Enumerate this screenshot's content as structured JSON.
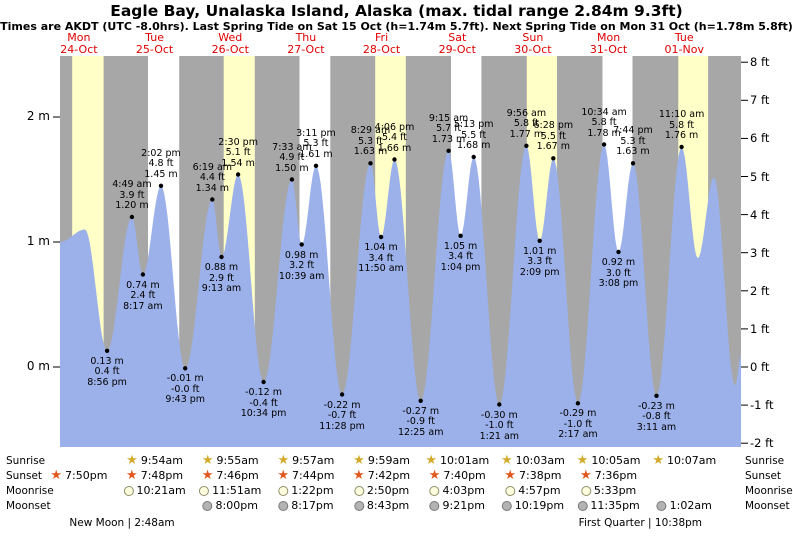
{
  "title": "Eagle Bay, Unalaska Island, Alaska (max. tidal range 2.84m 9.3ft)",
  "subtitle": "Times are AKDT (UTC -8.0hrs). Last Spring Tide on Sat 15 Oct (h=1.74m 5.7ft). Next Spring Tide on Mon 31 Oct (h=1.78m 5.8ft)",
  "days": [
    {
      "dow": "Mon",
      "date": "24-Oct"
    },
    {
      "dow": "Tue",
      "date": "25-Oct"
    },
    {
      "dow": "Wed",
      "date": "26-Oct"
    },
    {
      "dow": "Thu",
      "date": "27-Oct"
    },
    {
      "dow": "Fri",
      "date": "28-Oct"
    },
    {
      "dow": "Sat",
      "date": "29-Oct"
    },
    {
      "dow": "Sun",
      "date": "30-Oct"
    },
    {
      "dow": "Mon",
      "date": "31-Oct"
    },
    {
      "dow": "Tue",
      "date": "01-Nov"
    }
  ],
  "chart_data": {
    "type": "area",
    "title": "Tide height curve for Eagle Bay, Unalaska Island, Alaska",
    "x_categories": [
      "Mon 24-Oct",
      "Tue 25-Oct",
      "Wed 26-Oct",
      "Thu 27-Oct",
      "Fri 28-Oct",
      "Sat 29-Oct",
      "Sun 30-Oct",
      "Mon 31-Oct",
      "Tue 01-Nov"
    ],
    "y_axis_left": {
      "unit": "m",
      "ticks": [
        0,
        1,
        2
      ],
      "labels": [
        "0 m",
        "1 m",
        "2 m"
      ]
    },
    "y_axis_right": {
      "unit": "ft",
      "ticks": [
        -2,
        -1,
        0,
        1,
        2,
        3,
        4,
        5,
        6,
        7,
        8
      ]
    },
    "ylim_m": [
      -0.62,
      2.5
    ],
    "extremes": [
      {
        "kind": "edge",
        "t": 6,
        "m": 1.0,
        "lines": null
      },
      {
        "kind": "high",
        "t": 13.9,
        "m": 1.1,
        "lines": null
      },
      {
        "kind": "low",
        "t": 20.933,
        "m": 0.13,
        "lines": [
          "0.13 m",
          "0.4 ft",
          "8:56 pm"
        ]
      },
      {
        "kind": "high",
        "t": 28.817,
        "m": 1.2,
        "lines": [
          "4:49 am",
          "3.9 ft",
          "1.20 m"
        ]
      },
      {
        "kind": "low",
        "t": 32.283,
        "m": 0.74,
        "lines": [
          "0.74 m",
          "2.4 ft",
          "8:17 am"
        ]
      },
      {
        "kind": "high",
        "t": 38.033,
        "m": 1.45,
        "lines": [
          "2:02 pm",
          "4.8 ft",
          "1.45 m"
        ]
      },
      {
        "kind": "low",
        "t": 45.717,
        "m": -0.01,
        "lines": [
          "-0.01 m",
          "-0.0 ft",
          "9:43 pm"
        ]
      },
      {
        "kind": "high",
        "t": 54.317,
        "m": 1.34,
        "lines": [
          "6:19 am",
          "4.4 ft",
          "1.34 m"
        ]
      },
      {
        "kind": "low",
        "t": 57.217,
        "m": 0.88,
        "lines": [
          "0.88 m",
          "2.9 ft",
          "9:13 am"
        ]
      },
      {
        "kind": "high",
        "t": 62.5,
        "m": 1.54,
        "lines": [
          "2:30 pm",
          "5.1 ft",
          "1.54 m"
        ]
      },
      {
        "kind": "low",
        "t": 70.567,
        "m": -0.12,
        "lines": [
          "-0.12 m",
          "-0.4 ft",
          "10:34 pm"
        ]
      },
      {
        "kind": "high",
        "t": 79.55,
        "m": 1.5,
        "lines": [
          "7:33 am",
          "4.9 ft",
          "1.50 m"
        ]
      },
      {
        "kind": "low",
        "t": 82.65,
        "m": 0.98,
        "lines": [
          "0.98 m",
          "3.2 ft",
          "10:39 am"
        ]
      },
      {
        "kind": "high",
        "t": 87.183,
        "m": 1.61,
        "lines": [
          "3:11 pm",
          "5.3 ft",
          "1.61 m"
        ]
      },
      {
        "kind": "low",
        "t": 95.467,
        "m": -0.22,
        "lines": [
          "-0.22 m",
          "-0.7 ft",
          "11:28 pm"
        ]
      },
      {
        "kind": "high",
        "t": 104.483,
        "m": 1.63,
        "lines": [
          "8:29 am",
          "5.3 ft",
          "1.63 m"
        ]
      },
      {
        "kind": "low",
        "t": 107.833,
        "m": 1.04,
        "lines": [
          "1.04 m",
          "3.4 ft",
          "11:50 am"
        ]
      },
      {
        "kind": "high",
        "t": 112.1,
        "m": 1.66,
        "lines": [
          "4:06 pm",
          "5.4 ft",
          "1.66 m"
        ]
      },
      {
        "kind": "low",
        "t": 120.417,
        "m": -0.27,
        "lines": [
          "-0.27 m",
          "-0.9 ft",
          "12:25 am"
        ]
      },
      {
        "kind": "high",
        "t": 129.25,
        "m": 1.73,
        "lines": [
          "9:15 am",
          "5.7 ft",
          "1.73 m"
        ]
      },
      {
        "kind": "low",
        "t": 133.067,
        "m": 1.05,
        "lines": [
          "1.05 m",
          "3.4 ft",
          "1:04 pm"
        ]
      },
      {
        "kind": "high",
        "t": 137.217,
        "m": 1.68,
        "lines": [
          "5:13 pm",
          "5.5 ft",
          "1.68 m"
        ]
      },
      {
        "kind": "low",
        "t": 145.35,
        "m": -0.3,
        "lines": [
          "-0.30 m",
          "-1.0 ft",
          "1:21 am"
        ]
      },
      {
        "kind": "high",
        "t": 153.933,
        "m": 1.77,
        "lines": [
          "9:56 am",
          "5.8 ft",
          "1.77 m"
        ]
      },
      {
        "kind": "low",
        "t": 158.15,
        "m": 1.01,
        "lines": [
          "1.01 m",
          "3.3 ft",
          "2:09 pm"
        ]
      },
      {
        "kind": "high",
        "t": 162.467,
        "m": 1.67,
        "lines": [
          "6:28 pm",
          "5.5 ft",
          "1.67 m"
        ]
      },
      {
        "kind": "low",
        "t": 170.283,
        "m": -0.29,
        "lines": [
          "-0.29 m",
          "-1.0 ft",
          "2:17 am"
        ]
      },
      {
        "kind": "high",
        "t": 178.567,
        "m": 1.78,
        "lines": [
          "10:34 am",
          "5.8 ft",
          "1.78 m"
        ]
      },
      {
        "kind": "low",
        "t": 183.133,
        "m": 0.92,
        "lines": [
          "0.92 m",
          "3.0 ft",
          "3:08 pm"
        ]
      },
      {
        "kind": "high",
        "t": 187.733,
        "m": 1.63,
        "lines": [
          "7:44 pm",
          "5.3 ft",
          "1.63 m"
        ]
      },
      {
        "kind": "low",
        "t": 195.183,
        "m": -0.23,
        "lines": [
          "-0.23 m",
          "-0.8 ft",
          "3:11 am"
        ]
      },
      {
        "kind": "high",
        "t": 203.167,
        "m": 1.76,
        "lines": [
          "11:10 am",
          "5.8 ft",
          "1.76 m"
        ]
      },
      {
        "kind": "low",
        "t": 208.3,
        "m": 0.87,
        "lines": null
      },
      {
        "kind": "high",
        "t": 213.4,
        "m": 1.52,
        "lines": null
      },
      {
        "kind": "low",
        "t": 220.1,
        "m": -0.15,
        "lines": null
      },
      {
        "kind": "edge",
        "t": 222,
        "m": 0.1,
        "lines": null
      }
    ]
  },
  "astro": {
    "row_labels": {
      "sunrise": "Sunrise",
      "sunset": "Sunset",
      "moonrise": "Moonrise",
      "moonset": "Moonset"
    },
    "sunrise": [
      {
        "day": 1,
        "time": "9:54am"
      },
      {
        "day": 2,
        "time": "9:55am"
      },
      {
        "day": 3,
        "time": "9:57am"
      },
      {
        "day": 4,
        "time": "9:59am"
      },
      {
        "day": 5,
        "time": "10:01am"
      },
      {
        "day": 6,
        "time": "10:03am"
      },
      {
        "day": 7,
        "time": "10:05am"
      },
      {
        "day": 8,
        "time": "10:07am"
      }
    ],
    "sunset": [
      {
        "day": 0,
        "time": "7:50pm"
      },
      {
        "day": 1,
        "time": "7:48pm"
      },
      {
        "day": 2,
        "time": "7:46pm"
      },
      {
        "day": 3,
        "time": "7:44pm"
      },
      {
        "day": 4,
        "time": "7:42pm"
      },
      {
        "day": 5,
        "time": "7:40pm"
      },
      {
        "day": 6,
        "time": "7:38pm"
      },
      {
        "day": 7,
        "time": "7:36pm"
      }
    ],
    "moonrise": [
      {
        "day": 1,
        "time": "10:21am"
      },
      {
        "day": 2,
        "time": "11:51am"
      },
      {
        "day": 3,
        "time": "1:22pm"
      },
      {
        "day": 4,
        "time": "2:50pm"
      },
      {
        "day": 5,
        "time": "4:03pm"
      },
      {
        "day": 6,
        "time": "4:57pm"
      },
      {
        "day": 7,
        "time": "5:33pm"
      }
    ],
    "moonset": [
      {
        "day": 2,
        "time": "8:00pm"
      },
      {
        "day": 3,
        "time": "8:17pm"
      },
      {
        "day": 4,
        "time": "8:43pm"
      },
      {
        "day": 5,
        "time": "9:21pm"
      },
      {
        "day": 6,
        "time": "10:19pm"
      },
      {
        "day": 7,
        "time": "11:35pm"
      },
      {
        "day": 8,
        "time": "1:02am"
      }
    ],
    "phases": [
      {
        "name": "New Moon",
        "time": "2:48am",
        "day": 0.57
      },
      {
        "name": "First Quarter",
        "time": "10:38pm",
        "day": 7.42
      }
    ]
  },
  "colors": {
    "day_yellow": "#ffffc8",
    "day_white": "#ffffff",
    "night_gray": "#a7a7a7",
    "tide_fill": "#9cb1ea",
    "day_label_red": "#e00000"
  }
}
